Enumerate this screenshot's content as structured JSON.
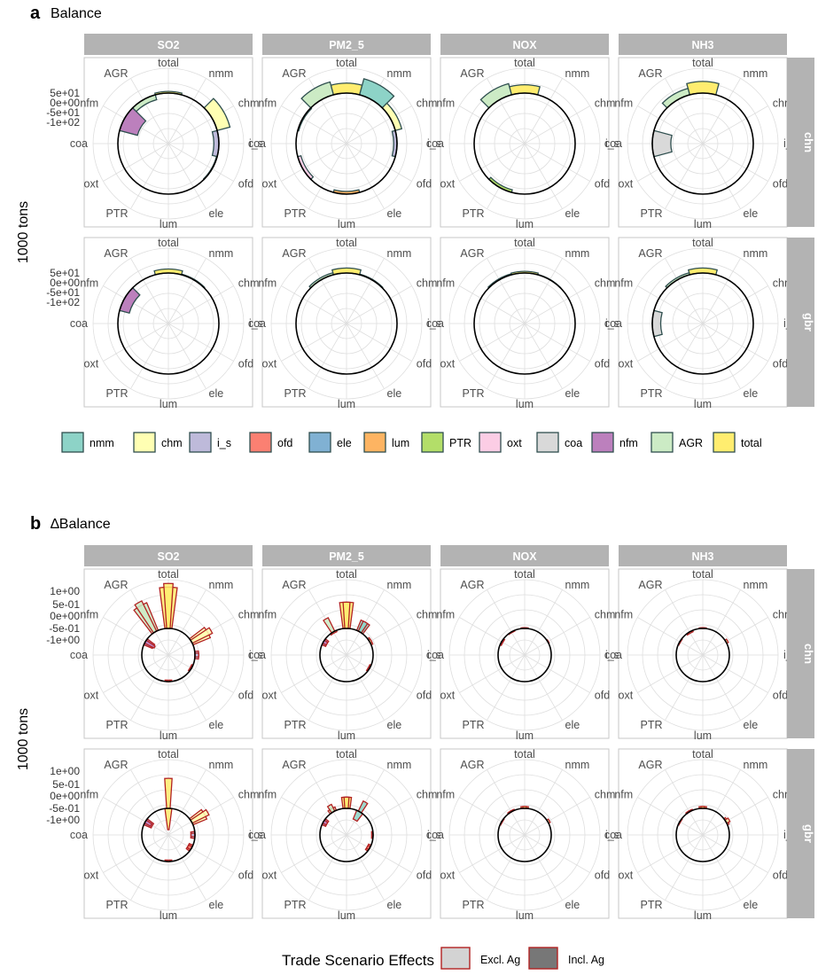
{
  "colors": {
    "nmm": "#8dd3c7",
    "chm": "#ffffb3",
    "i_s": "#bebada",
    "ofd": "#fb8072",
    "ele": "#80b1d3",
    "lum": "#fdb462",
    "PTR": "#b3de69",
    "oxt": "#fccde5",
    "coa": "#d9d9d9",
    "nfm": "#bc80bd",
    "AGR": "#ccebc5",
    "total": "#ffed6f",
    "outline_a": "#2f4f4f",
    "outline_b": "#b22222"
  },
  "sectors": [
    "total",
    "nmm",
    "chm",
    "i_s",
    "ofd",
    "ele",
    "lum",
    "PTR",
    "oxt",
    "coa",
    "nfm",
    "AGR"
  ],
  "pollutants": [
    "SO2",
    "PM2_5",
    "NOX",
    "NH3"
  ],
  "regions": [
    "chn",
    "gbr"
  ],
  "section_a": {
    "letter": "a",
    "title": "Balance",
    "ylabel": "1000 tons",
    "yticks": [
      "5e+01",
      "0e+00",
      "-5e+01",
      "-1e+02"
    ],
    "legend": {
      "items": [
        {
          "key": "nmm",
          "label": "nmm"
        },
        {
          "key": "chm",
          "label": "chm"
        },
        {
          "key": "i_s",
          "label": "i_s"
        },
        {
          "key": "ofd",
          "label": "ofd"
        },
        {
          "key": "ele",
          "label": "ele"
        },
        {
          "key": "lum",
          "label": "lum"
        },
        {
          "key": "PTR",
          "label": "PTR"
        },
        {
          "key": "oxt",
          "label": "oxt"
        },
        {
          "key": "coa",
          "label": "coa"
        },
        {
          "key": "nfm",
          "label": "nfm"
        },
        {
          "key": "AGR",
          "label": "AGR"
        },
        {
          "key": "total",
          "label": "total"
        }
      ]
    }
  },
  "section_b": {
    "letter": "b",
    "title": "∆Balance",
    "ylabel": "1000 tons",
    "yticks": [
      "1e+00",
      "5e-01",
      "0e+00",
      "-5e-01",
      "-1e+00"
    ],
    "legend": {
      "title": "Trade Scenario Effects",
      "items": [
        {
          "label": "Excl. Ag",
          "fill": "#d3d3d3"
        },
        {
          "label": "Incl. Ag",
          "fill": "#777777"
        }
      ]
    }
  },
  "chart_data": [
    {
      "type": "polar-bar",
      "title": "Balance",
      "ylabel": "1000 tons",
      "ylim": [
        -150,
        75
      ],
      "categories": [
        "total",
        "nmm",
        "chm",
        "i_s",
        "ofd",
        "ele",
        "lum",
        "PTR",
        "oxt",
        "coa",
        "nfm",
        "AGR"
      ],
      "facets": [
        {
          "pollutant": "SO2",
          "region": "chn",
          "values": {
            "total": 5,
            "nmm": 0,
            "chm": 40,
            "i_s": -15,
            "ofd": -2,
            "ele": 0,
            "lum": 0,
            "PTR": 0,
            "oxt": 0,
            "coa": 0,
            "nfm": -55,
            "AGR": -15
          }
        },
        {
          "pollutant": "PM2_5",
          "region": "chn",
          "values": {
            "total": 30,
            "nmm": 50,
            "chm": 20,
            "i_s": -10,
            "ofd": 0,
            "ele": 0,
            "lum": -8,
            "PTR": 0,
            "oxt": -10,
            "coa": 0,
            "nfm": -3,
            "AGR": 40
          }
        },
        {
          "pollutant": "NOX",
          "region": "chn",
          "values": {
            "total": 25,
            "nmm": 0,
            "chm": 0,
            "i_s": 0,
            "ofd": 0,
            "ele": 0,
            "lum": 0,
            "PTR": -8,
            "oxt": 0,
            "coa": 0,
            "nfm": 0,
            "AGR": 35
          }
        },
        {
          "pollutant": "NH3",
          "region": "chn",
          "values": {
            "total": 35,
            "nmm": 0,
            "chm": 0,
            "i_s": 0,
            "ofd": 0,
            "ele": 0,
            "lum": 0,
            "PTR": 0,
            "oxt": 0,
            "coa": -55,
            "nfm": 0,
            "AGR": 20
          }
        },
        {
          "pollutant": "SO2",
          "region": "gbr",
          "values": {
            "total": 12,
            "nmm": 2,
            "chm": 0,
            "i_s": 0,
            "ofd": 0,
            "ele": 0,
            "lum": 0,
            "PTR": 0,
            "oxt": 0,
            "coa": 0,
            "nfm": -30,
            "AGR": 0
          }
        },
        {
          "pollutant": "PM2_5",
          "region": "gbr",
          "values": {
            "total": 15,
            "nmm": 2,
            "chm": 0,
            "i_s": 0,
            "ofd": 0,
            "ele": 0,
            "lum": 0,
            "PTR": 0,
            "oxt": 0,
            "coa": 0,
            "nfm": 0,
            "AGR": 6
          }
        },
        {
          "pollutant": "NOX",
          "region": "gbr",
          "values": {
            "total": 5,
            "nmm": 1,
            "chm": 0,
            "i_s": 0,
            "ofd": 0,
            "ele": 0,
            "lum": 0,
            "PTR": 0,
            "oxt": 0,
            "coa": 0,
            "nfm": 0,
            "AGR": 3
          }
        },
        {
          "pollutant": "NH3",
          "region": "gbr",
          "values": {
            "total": 15,
            "nmm": 0,
            "chm": 0,
            "i_s": 0,
            "ofd": 0,
            "ele": 0,
            "lum": 0,
            "PTR": 0,
            "oxt": 0,
            "coa": -25,
            "nfm": 0,
            "AGR": 6
          }
        }
      ]
    },
    {
      "type": "polar-bar",
      "title": "∆Balance",
      "ylabel": "1000 tons",
      "ylim": [
        -2,
        1.3
      ],
      "categories": [
        "total",
        "nmm",
        "chm",
        "i_s",
        "ofd",
        "ele",
        "lum",
        "PTR",
        "oxt",
        "coa",
        "nfm",
        "AGR"
      ],
      "series": [
        "Excl. Ag",
        "Incl. Ag"
      ],
      "facets": [
        {
          "pollutant": "SO2",
          "region": "chn",
          "excl": {
            "total": 1.1,
            "nmm": 0,
            "chm": 0.5,
            "i_s": 0.1,
            "ofd": -0.1,
            "ele": 0,
            "lum": -0.1,
            "PTR": 0,
            "oxt": 0,
            "coa": 0,
            "nfm": -0.7,
            "AGR": 0.8
          },
          "incl": {
            "total": 1.2,
            "nmm": 0,
            "chm": 0.6,
            "i_s": 0.1,
            "ofd": -0.1,
            "ele": 0,
            "lum": -0.1,
            "PTR": 0,
            "oxt": 0,
            "coa": 0,
            "nfm": -0.8,
            "AGR": 0.9
          }
        },
        {
          "pollutant": "PM2_5",
          "region": "chn",
          "excl": {
            "total": 0.7,
            "nmm": 0.3,
            "chm": 0.05,
            "i_s": 0,
            "ofd": -0.1,
            "ele": 0,
            "lum": 0,
            "PTR": 0,
            "oxt": 0,
            "coa": 0,
            "nfm": -0.3,
            "AGR": -0.1
          },
          "incl": {
            "total": 0.7,
            "nmm": 0.3,
            "chm": 0.05,
            "i_s": 0,
            "ofd": -0.1,
            "ele": 0,
            "lum": 0,
            "PTR": 0,
            "oxt": 0,
            "coa": 0,
            "nfm": -0.3,
            "AGR": 0.4
          }
        },
        {
          "pollutant": "NOX",
          "region": "chn",
          "excl": {
            "total": 0.02,
            "nmm": 0,
            "chm": 0,
            "i_s": 0,
            "ofd": 0,
            "ele": 0,
            "lum": 0,
            "PTR": 0,
            "oxt": 0,
            "coa": 0,
            "nfm": -0.1,
            "AGR": -0.05
          },
          "incl": {
            "total": 0.02,
            "nmm": 0,
            "chm": 0.02,
            "i_s": 0,
            "ofd": 0,
            "ele": 0,
            "lum": 0,
            "PTR": 0,
            "oxt": 0,
            "coa": 0,
            "nfm": -0.1,
            "AGR": -0.05
          }
        },
        {
          "pollutant": "NH3",
          "region": "chn",
          "excl": {
            "total": 0.02,
            "nmm": 0,
            "chm": 0,
            "i_s": 0,
            "ofd": 0,
            "ele": 0,
            "lum": 0,
            "PTR": 0,
            "oxt": 0,
            "coa": 0,
            "nfm": -0.05,
            "AGR": -0.1
          },
          "incl": {
            "total": 0.02,
            "nmm": 0,
            "chm": 0.05,
            "i_s": 0,
            "ofd": 0,
            "ele": 0,
            "lum": 0,
            "PTR": 0,
            "oxt": 0,
            "coa": 0,
            "nfm": -0.05,
            "AGR": -0.1
          }
        },
        {
          "pollutant": "SO2",
          "region": "gbr",
          "excl": {
            "total": -1.6,
            "nmm": 0,
            "chm": 0.4,
            "i_s": -0.3,
            "ofd": -0.3,
            "ele": 0,
            "lum": -0.1,
            "PTR": 0,
            "oxt": 0,
            "coa": 0,
            "nfm": -0.6,
            "AGR": 0
          },
          "incl": {
            "total": 0.8,
            "nmm": 0,
            "chm": 0.5,
            "i_s": -0.3,
            "ofd": -0.3,
            "ele": 0,
            "lum": -0.1,
            "PTR": 0,
            "oxt": 0,
            "coa": 0,
            "nfm": -0.5,
            "AGR": 0
          }
        },
        {
          "pollutant": "PM2_5",
          "region": "gbr",
          "excl": {
            "total": 0.3,
            "nmm": -0.7,
            "chm": 0,
            "i_s": -0.1,
            "ofd": -0.2,
            "ele": 0,
            "lum": 0,
            "PTR": 0,
            "oxt": 0,
            "coa": 0,
            "nfm": -0.3,
            "AGR": 0.1
          },
          "incl": {
            "total": 0.3,
            "nmm": 0.3,
            "chm": 0,
            "i_s": -0.1,
            "ofd": -0.2,
            "ele": 0,
            "lum": 0,
            "PTR": 0,
            "oxt": 0,
            "coa": 0,
            "nfm": -0.3,
            "AGR": 0.2
          }
        },
        {
          "pollutant": "NOX",
          "region": "gbr",
          "excl": {
            "total": 0.05,
            "nmm": 0,
            "chm": 0,
            "i_s": 0,
            "ofd": 0,
            "ele": 0,
            "lum": 0,
            "PTR": 0,
            "oxt": 0,
            "coa": 0,
            "nfm": -0.05,
            "AGR": 0.03
          },
          "incl": {
            "total": 0.05,
            "nmm": 0,
            "chm": 0.05,
            "i_s": 0,
            "ofd": 0,
            "ele": 0,
            "lum": 0,
            "PTR": 0,
            "oxt": 0,
            "coa": 0,
            "nfm": -0.05,
            "AGR": 0.03
          }
        },
        {
          "pollutant": "NH3",
          "region": "gbr",
          "excl": {
            "total": 0.05,
            "nmm": 0,
            "chm": 0.05,
            "i_s": 0,
            "ofd": 0,
            "ele": 0,
            "lum": 0,
            "PTR": 0,
            "oxt": 0,
            "coa": 0,
            "nfm": -0.05,
            "AGR": 0.03
          },
          "incl": {
            "total": 0.05,
            "nmm": 0,
            "chm": 0.1,
            "i_s": 0,
            "ofd": 0,
            "ele": 0,
            "lum": 0,
            "PTR": 0,
            "oxt": 0,
            "coa": 0,
            "nfm": -0.05,
            "AGR": 0.03
          }
        }
      ]
    }
  ]
}
